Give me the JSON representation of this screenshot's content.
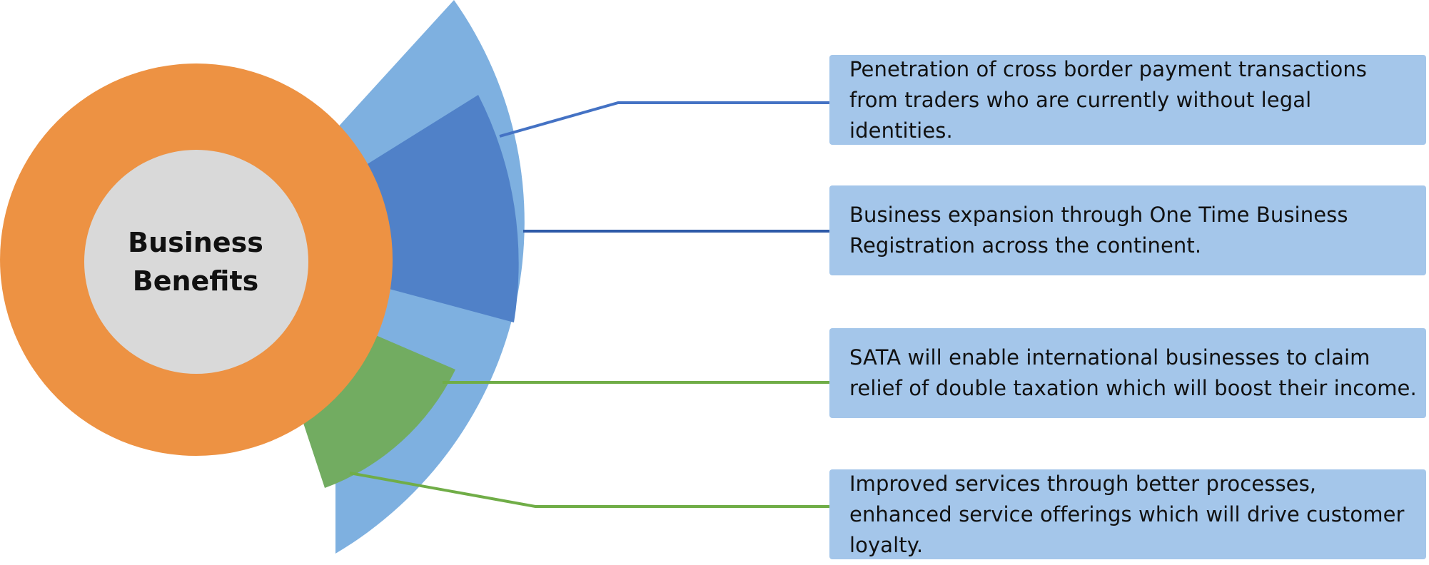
{
  "diagram": {
    "center_title_line1": "Business",
    "center_title_line2": "Benefits",
    "benefits": [
      {
        "text": "Penetration of cross border payment transactions from traders who are currently without legal identities.",
        "color": "#4472c4"
      },
      {
        "text": "Business expansion through One Time Business Registration across the continent.",
        "color": "#2e5aa8"
      },
      {
        "text": "SATA will enable international businesses to claim relief of double taxation which will boost their income.",
        "color": "#70ad47"
      },
      {
        "text": "Improved services through better processes, enhanced service offerings which will drive customer loyalty.",
        "color": "#70ad47"
      }
    ],
    "colors": {
      "ring": "#ed9243",
      "inner_circle": "#d9d9d9",
      "outer_fan": "#7eb0e0",
      "blue_sector": "#5081c8",
      "green_sector": "#72ac61",
      "box_fill": "#a4c6ea"
    }
  }
}
